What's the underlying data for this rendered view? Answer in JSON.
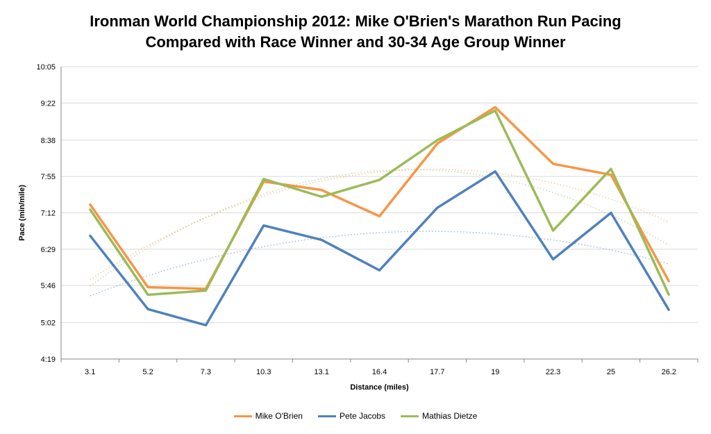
{
  "chart_data": {
    "type": "line",
    "title_line1": "Ironman World Championship 2012: Mike O'Brien's Marathon Run Pacing",
    "title_line2": "Compared with Race Winner and 30-34 Age Group Winner",
    "xlabel": "Distance (miles)",
    "ylabel": "Pace (min/mile)",
    "categories": [
      "3.1",
      "5.2",
      "7.3",
      "10.3",
      "13.1",
      "16.4",
      "17.7",
      "19",
      "22.3",
      "25",
      "26.2"
    ],
    "yticks": [
      "4:19",
      "5:02",
      "5:46",
      "6:29",
      "7:12",
      "7:55",
      "8:38",
      "9:22",
      "10:05"
    ],
    "ylim": [
      "4:19",
      "10:05"
    ],
    "grid": "horizontal",
    "legend_position": "bottom",
    "trendlines": "polynomial (order 2), dotted, one per series",
    "series": [
      {
        "name": "Mike O'Brien",
        "color": "#F79646",
        "values": [
          "7:22",
          "5:44",
          "5:42",
          "7:49",
          "7:39",
          "7:08",
          "8:34",
          "9:17",
          "8:10",
          "7:57",
          "5:51"
        ]
      },
      {
        "name": "Pete Jacobs",
        "color": "#4F81BD",
        "values": [
          "6:45",
          "5:18",
          "4:59",
          "6:57",
          "6:40",
          "6:04",
          "7:18",
          "8:01",
          "6:17",
          "7:12",
          "5:17"
        ]
      },
      {
        "name": "Mathias Dietze",
        "color": "#9BBB59",
        "values": [
          "7:16",
          "5:35",
          "5:40",
          "7:52",
          "7:31",
          "7:51",
          "8:38",
          "9:13",
          "6:51",
          "8:04",
          "5:35"
        ]
      }
    ]
  }
}
